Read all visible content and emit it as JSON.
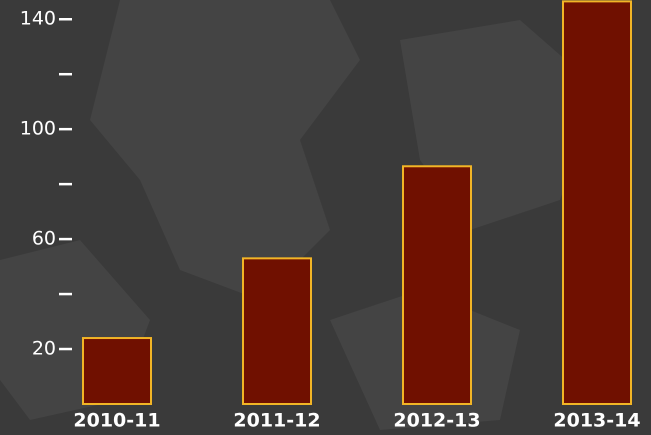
{
  "chart_data": {
    "type": "bar",
    "categories": [
      "2010-11",
      "2011-12",
      "2012-13",
      "2013-14"
    ],
    "values": [
      24,
      53,
      86.5,
      146.5
    ],
    "color": "#701000",
    "edge_color": "#f2b526",
    "ylim": [
      0,
      147
    ],
    "yticks": [
      20,
      60,
      100,
      140
    ],
    "yminorticks": [
      40,
      80,
      120
    ],
    "grid": false
  }
}
